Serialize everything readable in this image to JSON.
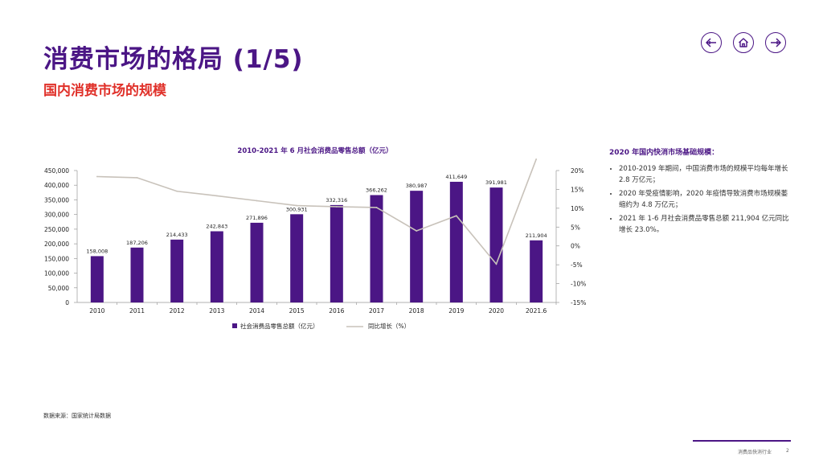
{
  "title": "消费市场的格局 (1/5)",
  "subtitle": "国内消费市场的规模",
  "nav": {
    "prev": "arrow-left-icon",
    "home": "home-icon",
    "next": "arrow-right-icon"
  },
  "colors": {
    "brand": "#4b1685",
    "accent": "#e0312a",
    "line": "#c8c2ba"
  },
  "chart_data": {
    "type": "bar",
    "title": "2010-2021 年 6 月社会消费品零售总额（亿元）",
    "categories": [
      "2010",
      "2011",
      "2012",
      "2013",
      "2014",
      "2015",
      "2016",
      "2017",
      "2018",
      "2019",
      "2020",
      "2021.6"
    ],
    "series": [
      {
        "name": "社会消费品零售总额（亿元）",
        "type": "bar",
        "axis": "left",
        "values": [
          158008,
          187206,
          214433,
          242843,
          271896,
          300931,
          332316,
          366262,
          380987,
          411649,
          391981,
          211904
        ],
        "labels": [
          "158,008",
          "187,206",
          "214,433",
          "242,843",
          "271,896",
          "300,931",
          "332,316",
          "366,262",
          "380,987",
          "411,649",
          "391,981",
          "211,904"
        ]
      },
      {
        "name": "同比增长（%）",
        "type": "line",
        "axis": "right",
        "values": [
          18.4,
          18.1,
          14.5,
          13.3,
          12.0,
          10.7,
          10.4,
          10.2,
          4.0,
          8.0,
          -4.8,
          23.0
        ]
      }
    ],
    "y_left": {
      "min": 0,
      "max": 450000,
      "ticks": [
        "0",
        "50,000",
        "100,000",
        "150,000",
        "200,000",
        "250,000",
        "300,000",
        "350,000",
        "400,000",
        "450,000"
      ]
    },
    "y_right": {
      "min": -15,
      "max": 20,
      "ticks": [
        "-15%",
        "-10%",
        "-5%",
        "0%",
        "5%",
        "10%",
        "15%",
        "20%"
      ]
    },
    "legend": "bottom"
  },
  "panel": {
    "title": "2020 年国内快消市场基础规模：",
    "bullets": [
      "2010-2019 年期间，中国消费市场的规模平均每年增长 2.8 万亿元；",
      "2020 年受疫情影响，2020 年疫情导致消费市场规模萎缩约为 4.8 万亿元；",
      "2021 年 1-6 月社会消费品零售总额 211,904 亿元同比增长 23.0%。"
    ]
  },
  "source": "数据来源：国家统计局数据",
  "footer": {
    "text": "消费品快消行业",
    "page": "2"
  }
}
